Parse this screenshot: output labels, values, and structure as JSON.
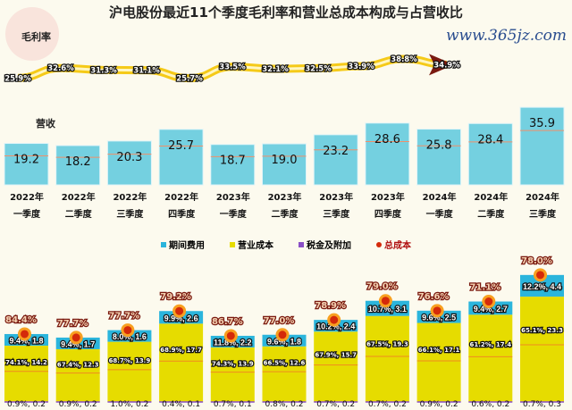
{
  "title": "沪电股份最近11个季度毛利率和营业总成本构成与占营收比",
  "gross_margin_label": "毛利率",
  "revenue_label": "营收",
  "legend": [
    {
      "label": "期间费用",
      "color": "#2bb5dc"
    },
    {
      "label": "营业成本",
      "color": "#e6dc00"
    },
    {
      "label": "税金及附加",
      "color": "#8a4fc6"
    },
    {
      "label": "总成本",
      "color": "#d42a0a"
    }
  ],
  "watermark": "www.365jz.com",
  "chart_data": {
    "type": "bar",
    "title": "沪电股份最近11个季度毛利率和营业总成本构成与占营收比",
    "categories": [
      [
        "2022年",
        "一季度"
      ],
      [
        "2022年",
        "二季度"
      ],
      [
        "2022年",
        "三季度"
      ],
      [
        "2022年",
        "四季度"
      ],
      [
        "2023年",
        "一季度"
      ],
      [
        "2023年",
        "二季度"
      ],
      [
        "2023年",
        "三季度"
      ],
      [
        "2023年",
        "四季度"
      ],
      [
        "2024年",
        "一季度"
      ],
      [
        "2024年",
        "二季度"
      ],
      [
        "2024年",
        "三季度"
      ]
    ],
    "gross_margin": [
      "25.9%",
      "32.6%",
      "31.3%",
      "31.1%",
      "25.7%",
      "33.5%",
      "32.1%",
      "32.5%",
      "33.9%",
      "38.8%",
      "34.9%"
    ],
    "gross_margin_values": [
      25.9,
      32.6,
      31.3,
      31.1,
      25.7,
      33.5,
      32.1,
      32.5,
      33.9,
      38.8,
      34.9
    ],
    "revenue": [
      19.2,
      18.2,
      20.3,
      25.7,
      18.7,
      19.0,
      23.2,
      28.6,
      25.8,
      28.4,
      35.9
    ],
    "total_cost_pct": [
      "84.4%",
      "77.7%",
      "77.7%",
      "79.2%",
      "86.7%",
      "77.0%",
      "78.9%",
      "79.0%",
      "76.6%",
      "71.1%",
      "78.0%"
    ],
    "period_expense": [
      "9.4%, 1.8",
      "9.4%, 1.7",
      "8.0%, 1.6",
      "9.9%, 2.6",
      "11.8%, 2.2",
      "9.6%, 1.8",
      "10.2%, 2.4",
      "10.7%, 3.1",
      "9.6%, 2.5",
      "9.4%, 2.7",
      "12.2%, 4.4"
    ],
    "operating_cost": [
      "74.1%, 14.2",
      "67.4%, 12.3",
      "68.7%, 13.9",
      "68.9%, 17.7",
      "74.3%, 13.9",
      "66.5%, 12.6",
      "67.9%, 15.7",
      "67.5%, 19.3",
      "66.1%, 17.1",
      "61.2%, 17.4",
      "65.1%, 23.3"
    ],
    "taxes_surcharges": [
      "0.9%, 0.2",
      "0.9%, 0.2",
      "1.0%, 0.2",
      "0.4%, 0.1",
      "0.7%, 0.1",
      "0.8%, 0.2",
      "0.7%, 0.2",
      "0.7%, 0.2",
      "0.9%, 0.2",
      "0.6%, 0.2",
      "0.7%, 0.3"
    ],
    "period_expense_pct": [
      9.4,
      9.4,
      8.0,
      9.9,
      11.8,
      9.6,
      10.2,
      10.7,
      9.6,
      9.4,
      12.2
    ]
  }
}
